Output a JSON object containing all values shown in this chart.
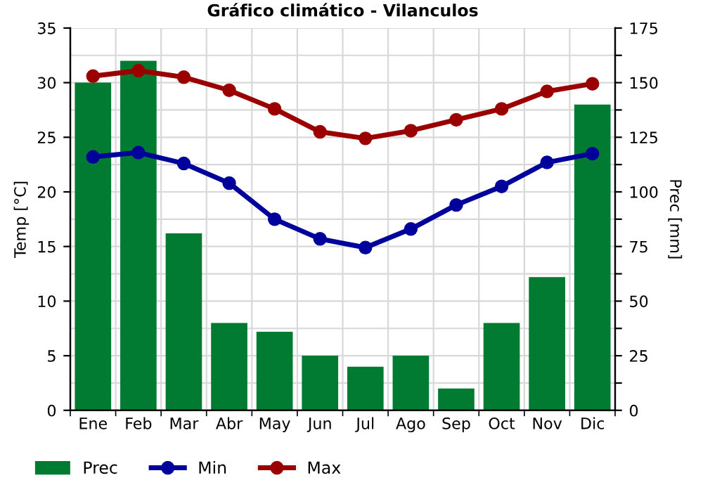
{
  "chart_data": {
    "type": "bar",
    "title": "Gráfico climático - Vilanculos",
    "ylabel": "Temp [°C]",
    "y2label": "Prec [mm]",
    "categories": [
      "Ene",
      "Feb",
      "Mar",
      "Abr",
      "May",
      "Jun",
      "Jul",
      "Ago",
      "Sep",
      "Oct",
      "Nov",
      "Dic"
    ],
    "series": [
      {
        "name": "Prec",
        "axis": "y2",
        "color": "#007b31",
        "values": [
          150,
          160,
          81,
          40,
          36,
          25,
          20,
          25,
          10,
          40,
          61,
          140
        ]
      },
      {
        "name": "Min",
        "type": "line",
        "color": "#00009b",
        "marker": "circle",
        "values": [
          23.2,
          23.6,
          22.6,
          20.8,
          17.5,
          15.7,
          14.9,
          16.6,
          18.8,
          20.5,
          22.7,
          23.5
        ]
      },
      {
        "name": "Max",
        "type": "line",
        "color": "#9b0000",
        "marker": "circle",
        "values": [
          30.6,
          31.1,
          30.5,
          29.3,
          27.6,
          25.5,
          24.9,
          25.6,
          26.6,
          27.6,
          29.2,
          29.9
        ]
      }
    ],
    "ylim": [
      0,
      35
    ],
    "yticks": [
      0,
      5,
      10,
      15,
      20,
      25,
      30,
      35
    ],
    "y2lim": [
      0,
      175
    ],
    "y2ticks": [
      0,
      {
        "value": 12.5,
        "label": null
      },
      25,
      {
        "value": 37.5,
        "label": null
      },
      50,
      {
        "value": 62.5,
        "label": null
      },
      75,
      {
        "value": 87.5,
        "label": null
      },
      100,
      {
        "value": 112.5,
        "label": null
      },
      125,
      {
        "value": 137.5,
        "label": null
      },
      150,
      {
        "value": 162.5,
        "label": null
      },
      175
    ],
    "grid": true,
    "legend": "bottom left"
  }
}
